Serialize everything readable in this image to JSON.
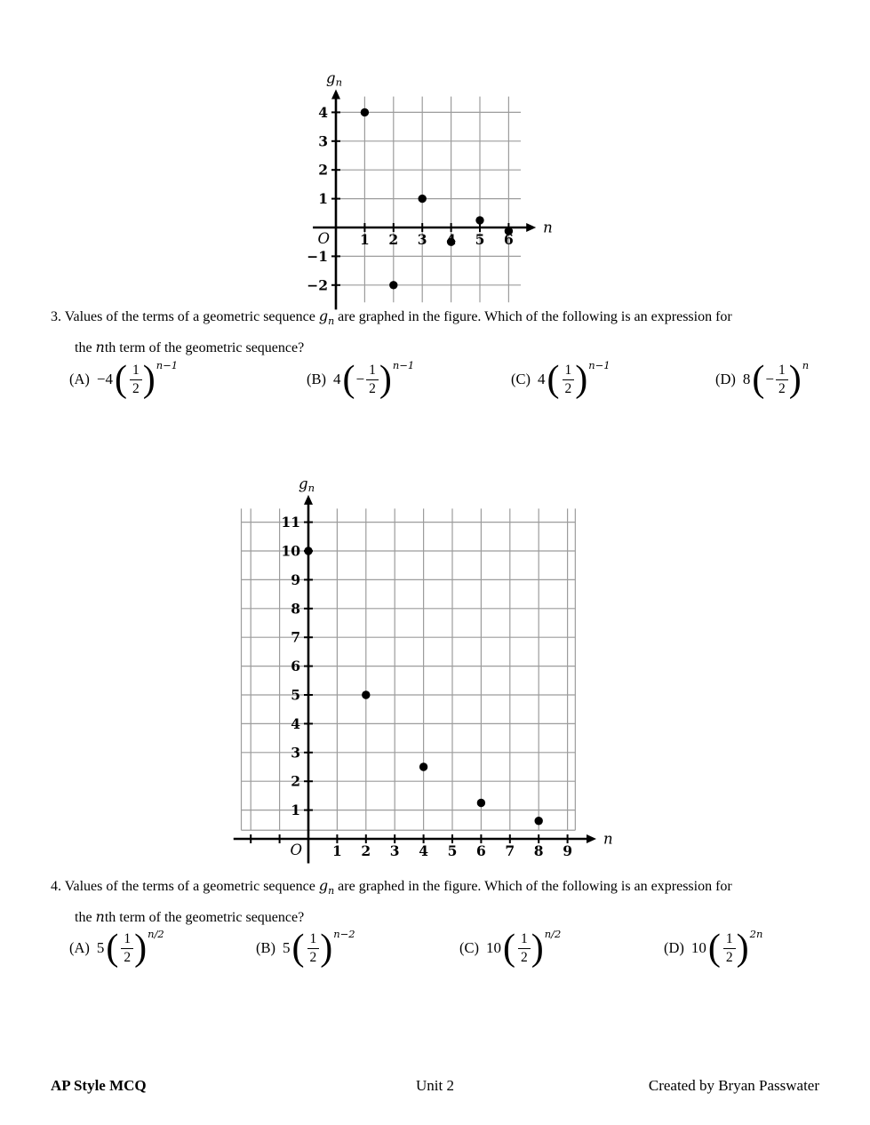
{
  "math": {
    "lparen": "(",
    "rparen": ")"
  },
  "q3": {
    "number": "3.",
    "text_before_symbol": "Values of the terms of a geometric sequence",
    "sequence_symbol": "g",
    "sequence_symbol_sub": "n",
    "text_after_symbol": "are graphed in the figure. Which of the following is an expression for",
    "line2_before_n": "the",
    "line2_n": "n",
    "line2_after_n": "th term of the geometric sequence?",
    "choices": [
      {
        "label": "(A)",
        "coeff": "−4",
        "inner_sign": "",
        "num": "1",
        "den": "2",
        "exp": "n−1"
      },
      {
        "label": "(B)",
        "coeff": "4",
        "inner_sign": "−",
        "num": "1",
        "den": "2",
        "exp": "n−1"
      },
      {
        "label": "(C)",
        "coeff": "4",
        "inner_sign": "",
        "num": "1",
        "den": "2",
        "exp": "n−1"
      },
      {
        "label": "(D)",
        "coeff": "8",
        "inner_sign": "−",
        "num": "1",
        "den": "2",
        "exp": "n"
      }
    ]
  },
  "q4": {
    "number": "4.",
    "text_before_symbol": "Values of the terms of a geometric sequence",
    "sequence_symbol": "g",
    "sequence_symbol_sub": "n",
    "text_after_symbol": "are graphed in the figure. Which of the following is an expression for",
    "line2_before_n": "the",
    "line2_n": "n",
    "line2_after_n": "th term of the geometric sequence?",
    "choices": [
      {
        "label": "(A)",
        "coeff": "5",
        "inner_sign": "",
        "num": "1",
        "den": "2",
        "exp": "n/2"
      },
      {
        "label": "(B)",
        "coeff": "5",
        "inner_sign": "",
        "num": "1",
        "den": "2",
        "exp": "n−2"
      },
      {
        "label": "(C)",
        "coeff": "10",
        "inner_sign": "",
        "num": "1",
        "den": "2",
        "exp": "n/2"
      },
      {
        "label": "(D)",
        "coeff": "10",
        "inner_sign": "",
        "num": "1",
        "den": "2",
        "exp": "2n"
      }
    ]
  },
  "footer": {
    "left": "AP Style MCQ",
    "center": "Unit 2",
    "right": "Created by Bryan Passwater"
  },
  "chart_data": [
    {
      "type": "scatter",
      "title": "",
      "xlabel": "n",
      "ylabel": "g_n",
      "ylabel_main": "g",
      "ylabel_sub": "n",
      "origin_label": "O",
      "points": [
        [
          1,
          4
        ],
        [
          2,
          -2
        ],
        [
          3,
          1
        ],
        [
          4,
          -0.5
        ],
        [
          5,
          0.25
        ],
        [
          6,
          -0.125
        ]
      ],
      "x_tick_labels": [
        1,
        2,
        3,
        4,
        5,
        6
      ],
      "y_tick_labels": [
        4,
        3,
        2,
        1,
        -1,
        -2
      ],
      "x_ticks_unlabeled": [],
      "xlim": [
        -0.8,
        6.95
      ],
      "ylim": [
        -2.85,
        4.8
      ],
      "grid": true,
      "legend": false
    },
    {
      "type": "scatter",
      "title": "",
      "xlabel": "n",
      "ylabel": "g_n",
      "ylabel_main": "g",
      "ylabel_sub": "n",
      "origin_label": "O",
      "points": [
        [
          0,
          10
        ],
        [
          2,
          5
        ],
        [
          4,
          2.5
        ],
        [
          6,
          1.25
        ],
        [
          8,
          0.625
        ]
      ],
      "x_tick_labels": [
        1,
        2,
        3,
        4,
        5,
        6,
        7,
        8,
        9
      ],
      "y_tick_labels": [
        1,
        2,
        3,
        4,
        5,
        6,
        7,
        8,
        9,
        10,
        11
      ],
      "x_ticks_unlabeled": [
        -2,
        -1
      ],
      "xlim": [
        -2.6,
        10.0
      ],
      "ylim": [
        -0.85,
        11.95
      ],
      "grid": true,
      "legend": false
    }
  ]
}
